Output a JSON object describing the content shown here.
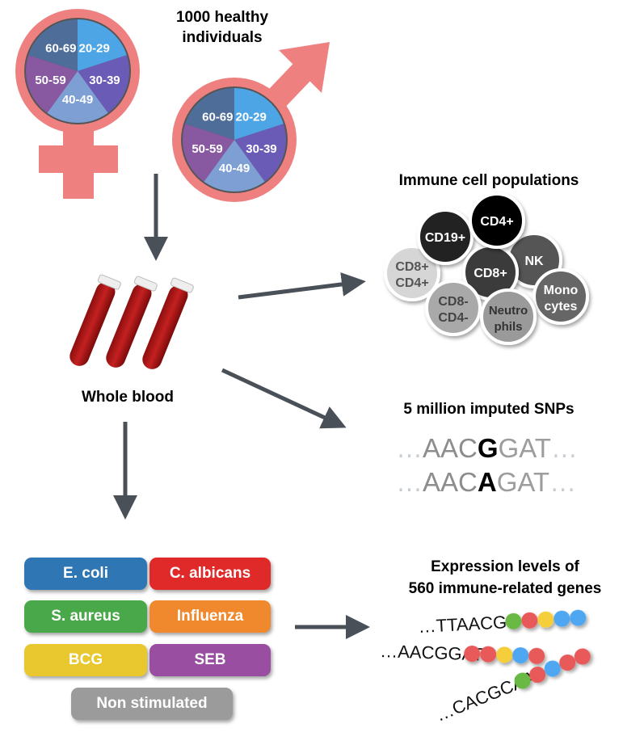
{
  "cohort": {
    "title_line1": "1000 healthy individuals",
    "title_line2": "individuals",
    "title_line1_short": "1000 healthy",
    "age_groups": [
      "20-29",
      "30-39",
      "40-49",
      "50-59",
      "60-69"
    ],
    "age_colors": [
      "#4ea5e6",
      "#6a5cb6",
      "#7d9fd3",
      "#8858a0",
      "#4f6d99"
    ],
    "symbol_color": "#ee8080"
  },
  "blood": {
    "label": "Whole blood"
  },
  "immune": {
    "title": "Immune cell populations",
    "cells": [
      {
        "line1": "CD8+",
        "line2": "CD4+"
      },
      {
        "line1": "CD19+"
      },
      {
        "line1": "NK"
      },
      {
        "line1": "CD8+"
      },
      {
        "line1": "CD4+"
      },
      {
        "line1": "Mono",
        "line2": "cytes"
      },
      {
        "line1": "CD8-",
        "line2": "CD4-"
      },
      {
        "line1": "Neutro",
        "line2": "phils"
      }
    ]
  },
  "snps": {
    "title": "5 million imputed SNPs",
    "seq1": {
      "left": "…",
      "pre": "AAC",
      "allele": "G",
      "post": "GAT",
      "right": "…"
    },
    "seq2": {
      "left": "…",
      "pre": "AAC",
      "allele": "A",
      "post": "GAT",
      "right": "…"
    }
  },
  "stimuli": [
    {
      "label": "E. coli",
      "color": "#2e77b4"
    },
    {
      "label": "C. albicans",
      "color": "#e02a2a"
    },
    {
      "label": "S. aureus",
      "color": "#49a849"
    },
    {
      "label": "Influenza",
      "color": "#f0892d"
    },
    {
      "label": "BCG",
      "color": "#e8c72f"
    },
    {
      "label": "SEB",
      "color": "#994ea2"
    },
    {
      "label": "Non stimulated",
      "color": "#9b9b9b"
    }
  ],
  "expression": {
    "title_line1": "Expression levels of",
    "title_line2": "560 immune-related genes",
    "strands": [
      "…TTAACGG",
      "…AACGGAT",
      "…CACGCAA"
    ]
  }
}
